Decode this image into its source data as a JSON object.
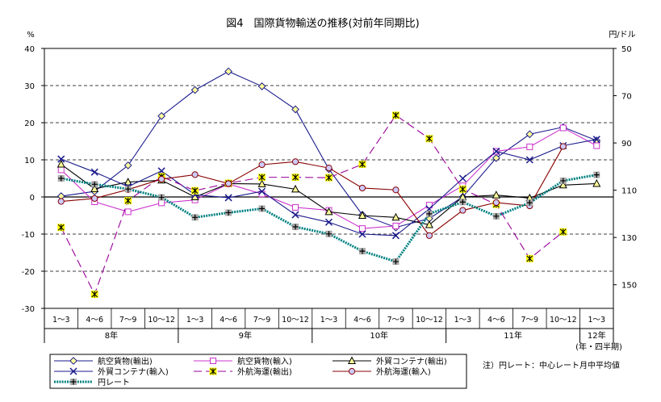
{
  "chart_data": {
    "type": "line",
    "title": "図4　国際貨物輸送の推移(対前年同期比)",
    "left_axis": {
      "unit": "%",
      "ylim": [
        -30,
        40
      ],
      "ticks": [
        -30,
        -20,
        -10,
        0,
        10,
        20,
        30,
        40
      ]
    },
    "right_axis": {
      "unit": "円/ドル",
      "ylim": [
        160,
        50
      ],
      "ticks": [
        150,
        130,
        110,
        90,
        70,
        50
      ]
    },
    "grid": "dashed horizontal every 10%",
    "categories": [
      "1～3",
      "4～6",
      "7～9",
      "10～12",
      "1～3",
      "4～6",
      "7～9",
      "10～12",
      "1～3",
      "4～6",
      "7～9",
      "10～12",
      "1～3",
      "4～6",
      "7～9",
      "10～12",
      "1～3"
    ],
    "year_groups": [
      {
        "label": "8年",
        "start": 0,
        "count": 4
      },
      {
        "label": "9年",
        "start": 4,
        "count": 4
      },
      {
        "label": "10年",
        "start": 8,
        "count": 4
      },
      {
        "label": "11年",
        "start": 12,
        "count": 4
      },
      {
        "label": "12年",
        "start": 16,
        "count": 1
      }
    ],
    "x_axis_label": "(年・四半期)",
    "series": [
      {
        "name": "航空貨物(輸出)",
        "axis": "left",
        "color": "#1a1a8c",
        "marker": "diamond",
        "marker_fill": "#ffff99",
        "dash": "",
        "values": [
          0.2,
          1.5,
          8.5,
          21.8,
          28.8,
          33.8,
          29.8,
          23.6,
          7.5,
          -4.8,
          -8.2,
          -5.8,
          0,
          10.5,
          16.9,
          18.8,
          15.2
        ]
      },
      {
        "name": "航空貨物(輸入)",
        "axis": "left",
        "color": "#cc33cc",
        "marker": "square",
        "marker_fill": "#ffffff",
        "dash": "",
        "values": [
          7.3,
          -1.3,
          -4,
          -1.6,
          -0.8,
          3.5,
          0.8,
          -2.8,
          -3.6,
          -8.5,
          -7.8,
          -2.2,
          3,
          12.3,
          13.5,
          18.6,
          13.8
        ]
      },
      {
        "name": "外貿コンテナ(輸出)",
        "axis": "left",
        "color": "#000000",
        "marker": "triangle",
        "marker_fill": "#ffff99",
        "dash": "",
        "values": [
          8.8,
          2.2,
          4,
          4.5,
          0,
          3.6,
          3.5,
          2.1,
          -4,
          -5,
          -5.5,
          -7.5,
          0,
          0.5,
          -0.3,
          3.2,
          3.6
        ]
      },
      {
        "name": "外貿コンテナ(輸入)",
        "axis": "left",
        "color": "#1a1a8c",
        "marker": "x",
        "marker_fill": "#ffffff",
        "dash": "",
        "values": [
          10.2,
          6.7,
          2.8,
          7,
          0.6,
          -0.2,
          1.5,
          -4.8,
          -6.8,
          -10,
          -10.4,
          -3.2,
          5,
          12.3,
          10,
          13.8,
          15.5
        ]
      },
      {
        "name": "外航海運(輸出)",
        "axis": "left",
        "color": "#990099",
        "marker": "asterisk",
        "marker_fill": "#ffff00",
        "dash": "10,5",
        "values": [
          -8.2,
          -26.2,
          -1,
          5.5,
          1.7,
          3.7,
          5.3,
          5.3,
          5.2,
          8.8,
          22,
          15.7,
          2.1,
          -2,
          -16.6,
          -9.4,
          null
        ]
      },
      {
        "name": "外航海運(輸入)",
        "axis": "left",
        "color": "#880000",
        "marker": "circle",
        "marker_fill": "#ccccff",
        "dash": "",
        "values": [
          -1.2,
          -0.4,
          2,
          4.8,
          6,
          3.6,
          8.7,
          9.5,
          7.8,
          2.4,
          1.9,
          -10.4,
          -3.6,
          -1.5,
          -2.4,
          13.6,
          null
        ]
      },
      {
        "name": "円レート",
        "axis": "right",
        "color": "#008080",
        "marker": "plus",
        "marker_fill": "#aaaaaa",
        "dash": "2,1.2",
        "values": [
          105,
          107.5,
          109.5,
          113,
          121.5,
          119.5,
          117.8,
          125.5,
          128.5,
          135.8,
          140.2,
          120,
          115,
          121,
          115.3,
          106,
          103.5
        ]
      }
    ],
    "legend_layout": [
      [
        "航空貨物(輸出)",
        "航空貨物(輸入)",
        "外貿コンテナ(輸出)"
      ],
      [
        "外貿コンテナ(輸入)",
        "外航海運(輸出)",
        "外航海運(輸入)"
      ],
      [
        "円レート"
      ]
    ],
    "note": "注）円レート：中心レート月中平均値"
  }
}
